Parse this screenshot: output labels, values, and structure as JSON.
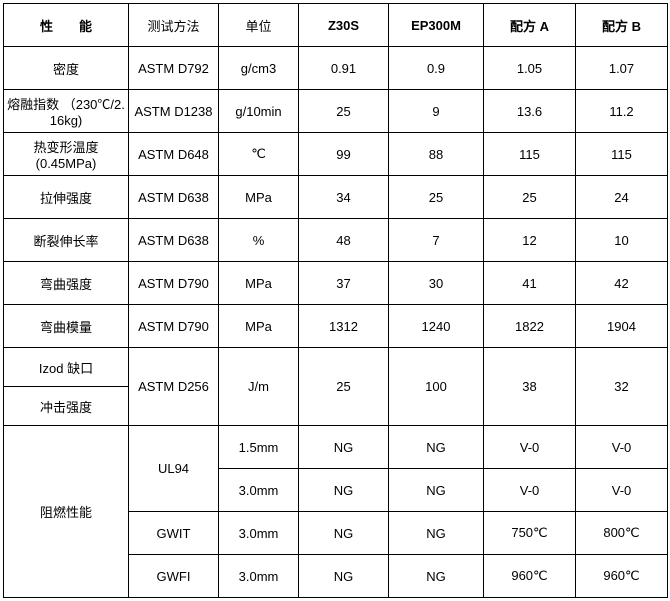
{
  "header": {
    "c1": "性能",
    "c2": "测试方法",
    "c3": "单位",
    "c4": "Z30S",
    "c5": "EP300M",
    "c6": "配方 A",
    "c7": "配方 B"
  },
  "rows": [
    {
      "prop": "密度",
      "method": "ASTM D792",
      "unit": "g/cm3",
      "v1": "0.91",
      "v2": "0.9",
      "v3": "1.05",
      "v4": "1.07"
    },
    {
      "prop": "熔融指数 （230℃/2. 16kg)",
      "method": "ASTM D1238",
      "unit": "g/10min",
      "v1": "25",
      "v2": "9",
      "v3": "13.6",
      "v4": "11.2"
    },
    {
      "prop": "热变形温度(0.45MPa)",
      "method": "ASTM D648",
      "unit": "℃",
      "v1": "99",
      "v2": "88",
      "v3": "115",
      "v4": "115"
    },
    {
      "prop": "拉伸强度",
      "method": "ASTM D638",
      "unit": "MPa",
      "v1": "34",
      "v2": "25",
      "v3": "25",
      "v4": "24"
    },
    {
      "prop": "断裂伸长率",
      "method": "ASTM D638",
      "unit": "%",
      "v1": "48",
      "v2": "7",
      "v3": "12",
      "v4": "10"
    },
    {
      "prop": "弯曲强度",
      "method": "ASTM D790",
      "unit": "MPa",
      "v1": "37",
      "v2": "30",
      "v3": "41",
      "v4": "42"
    },
    {
      "prop": "弯曲模量",
      "method": "ASTM D790",
      "unit": "MPa",
      "v1": "1312",
      "v2": "1240",
      "v3": "1822",
      "v4": "1904"
    }
  ],
  "izod": {
    "prop1": "Izod 缺口",
    "prop2": "冲击强度",
    "method": "ASTM D256",
    "unit": "J/m",
    "v1": "25",
    "v2": "100",
    "v3": "38",
    "v4": "32"
  },
  "flame": {
    "prop": "阻燃性能",
    "rows": [
      {
        "method": "UL94",
        "unit": "1.5mm",
        "v1": "NG",
        "v2": "NG",
        "v3": "V-0",
        "v4": "V-0"
      },
      {
        "method": "",
        "unit": "3.0mm",
        "v1": "NG",
        "v2": "NG",
        "v3": "V-0",
        "v4": "V-0"
      },
      {
        "method": "GWIT",
        "unit": "3.0mm",
        "v1": "NG",
        "v2": "NG",
        "v3": "750℃",
        "v4": "800℃"
      },
      {
        "method": "GWFI",
        "unit": "3.0mm",
        "v1": "NG",
        "v2": "NG",
        "v3": "960℃",
        "v4": "960℃"
      }
    ]
  }
}
